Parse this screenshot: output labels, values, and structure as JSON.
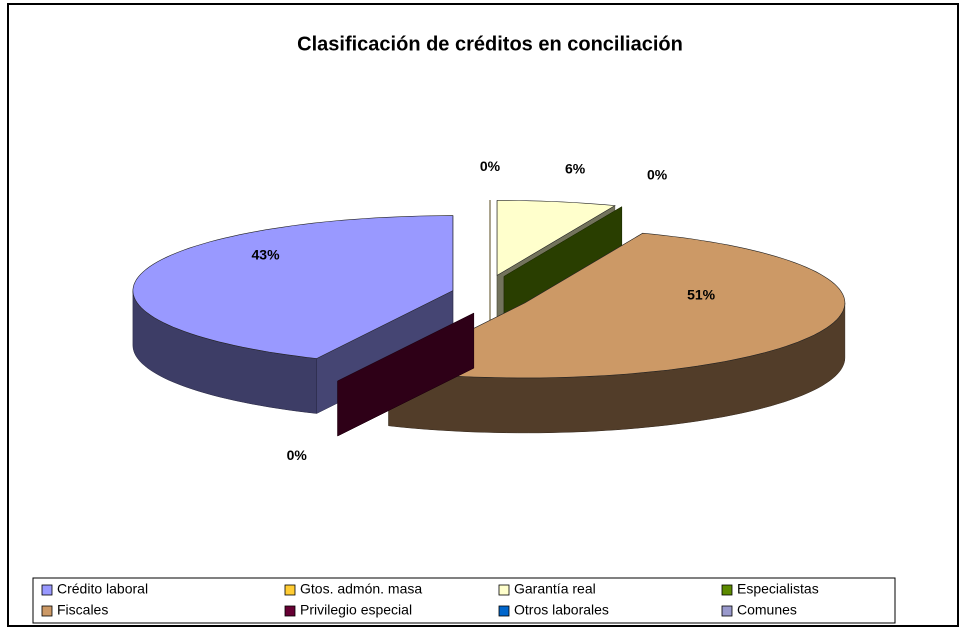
{
  "chart_data": {
    "type": "pie",
    "title": "Clasificación de créditos en conciliación",
    "categories": [
      "Crédito laboral",
      "Gtos. admón. masa",
      "Garantía real",
      "Especialistas",
      "Fiscales",
      "Privilegio especial",
      "Otros laborales",
      "Comunes"
    ],
    "values": [
      43,
      0,
      6,
      0,
      51,
      0,
      0,
      0
    ],
    "value_labels": [
      "43%",
      "0%",
      "6%",
      "0%",
      "51%",
      "0%",
      null,
      null
    ],
    "colors": [
      "#9999ff",
      "#ffcc33",
      "#ffffcc",
      "#5c8a00",
      "#cc9966",
      "#660033",
      "#0066cc",
      "#9999cc"
    ],
    "legend": "bottom"
  }
}
